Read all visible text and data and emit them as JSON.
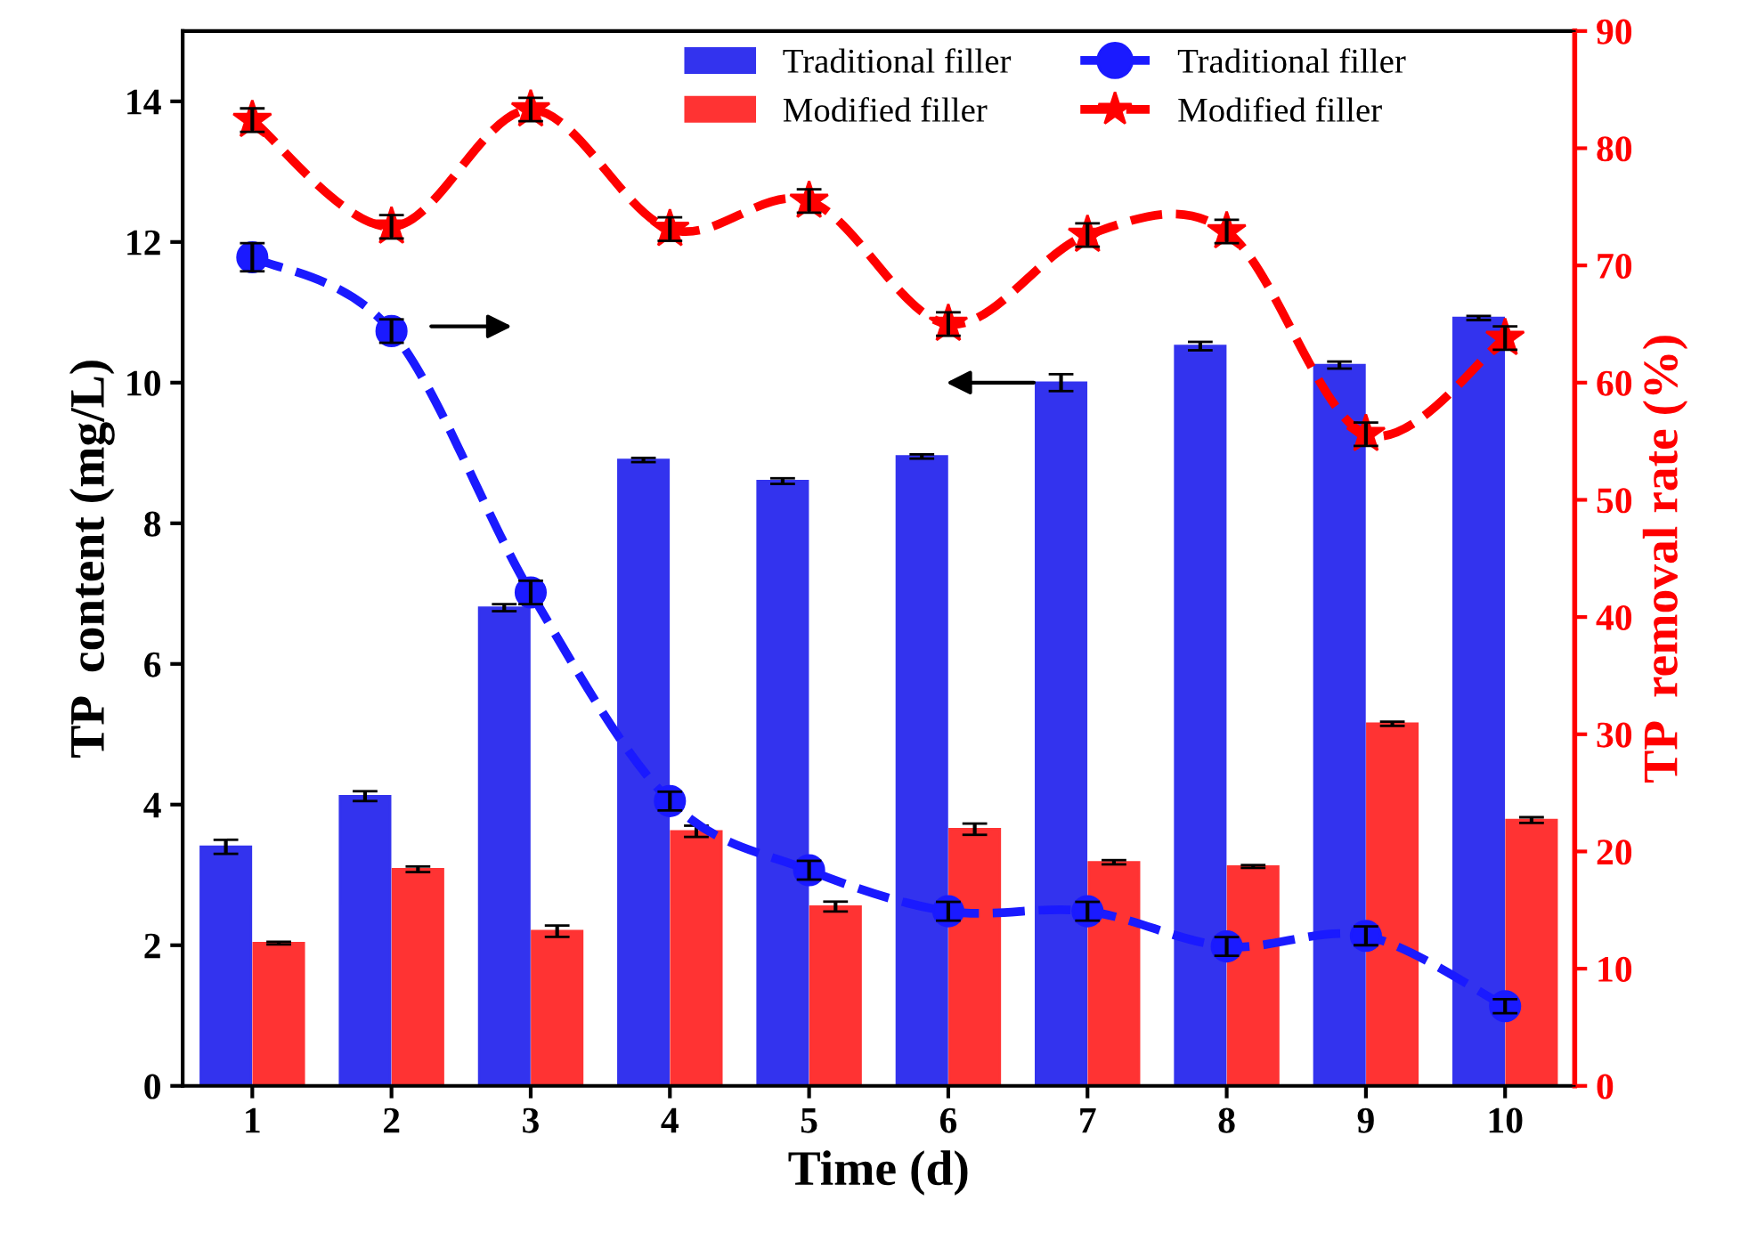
{
  "chart_data": {
    "type": "bar",
    "xlabel": "Time (d)",
    "ylabel": "TP  content (mg/L)",
    "y2label": "TP  removal rate (%)",
    "categories": [
      "1",
      "2",
      "3",
      "4",
      "5",
      "6",
      "7",
      "8",
      "9",
      "10"
    ],
    "series": [
      {
        "name": "Traditional filler",
        "color": "#3333ee",
        "values": [
          3.4,
          4.12,
          6.8,
          8.9,
          8.6,
          8.95,
          10.0,
          10.52,
          10.25,
          10.92
        ],
        "errors": [
          0.1,
          0.07,
          0.05,
          0.03,
          0.04,
          0.03,
          0.12,
          0.06,
          0.05,
          0.03
        ]
      },
      {
        "name": "Modified filler",
        "color": "#ff3333",
        "values": [
          2.03,
          3.08,
          2.2,
          3.62,
          2.55,
          3.65,
          3.18,
          3.12,
          5.15,
          3.78
        ],
        "errors": [
          0.02,
          0.04,
          0.08,
          0.08,
          0.07,
          0.08,
          0.03,
          0.02,
          0.03,
          0.04
        ]
      },
      {
        "name": "Traditional filler",
        "type": "line",
        "axis": "y2",
        "color": "#1a1aff",
        "marker": "circle",
        "line_style": "dashed",
        "values": [
          70.7,
          64.4,
          42.1,
          24.3,
          18.4,
          14.9,
          14.9,
          11.9,
          12.8,
          6.8
        ],
        "errors": [
          1.2,
          1.0,
          1.0,
          0.8,
          0.8,
          0.8,
          0.8,
          0.8,
          0.8,
          0.6
        ]
      },
      {
        "name": "Modified filler",
        "type": "line",
        "axis": "y2",
        "color": "#ff0000",
        "marker": "star",
        "line_style": "dashed",
        "values": [
          82.4,
          73.3,
          83.3,
          73.1,
          75.5,
          65.0,
          72.6,
          72.9,
          55.6,
          63.8
        ],
        "errors": [
          1.0,
          1.0,
          1.0,
          1.0,
          1.0,
          1.0,
          1.0,
          1.0,
          1.0,
          1.0
        ]
      }
    ],
    "ylim": [
      0,
      15
    ],
    "yticks": [
      0,
      2,
      4,
      6,
      8,
      10,
      12,
      14
    ],
    "y2lim": [
      0,
      90
    ],
    "y2ticks": [
      0,
      10,
      20,
      30,
      40,
      50,
      60,
      70,
      80,
      90
    ],
    "legend": "top",
    "grid": false
  }
}
